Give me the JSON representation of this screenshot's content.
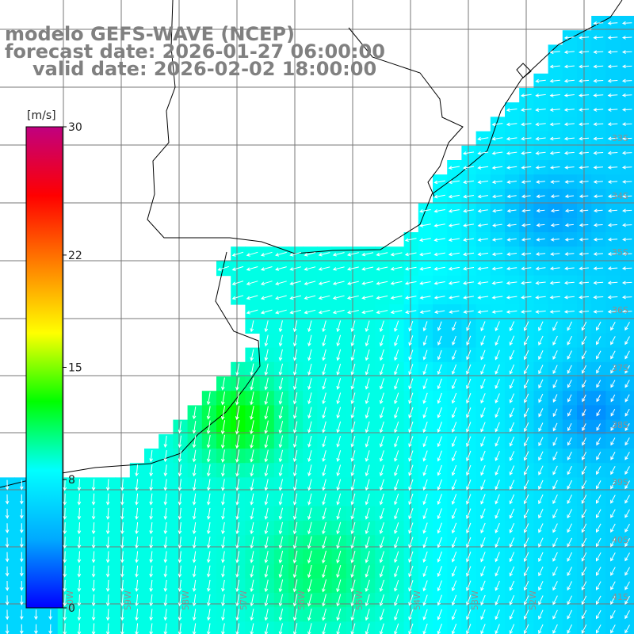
{
  "title": {
    "line1": "modelo GEFS-WAVE (NCEP)",
    "line2": "forecast date: 2026-01-27 06:00:00",
    "line3": "valid date: 2026-02-02 18:00:00"
  },
  "colorbar": {
    "unit": "[m/s]",
    "min": 0,
    "max": 30,
    "ticks": [
      {
        "value": 30,
        "label": "30"
      },
      {
        "value": 22,
        "label": "22"
      },
      {
        "value": 15,
        "label": "15"
      },
      {
        "value": 8,
        "label": "8"
      },
      {
        "value": 0,
        "label": "0"
      }
    ],
    "colors": [
      "#0000ff",
      "#00aaff",
      "#00ffff",
      "#00ff00",
      "#ffff00",
      "#ff8000",
      "#ff0000",
      "#c00080"
    ]
  },
  "map": {
    "variable": "wind speed",
    "unit": "m/s",
    "lon_range": [
      -62,
      -51
    ],
    "lat_range": [
      -41.5,
      -31
    ],
    "lat_labels": [
      "33S",
      "34S",
      "35S",
      "36S",
      "37S",
      "38S",
      "39S",
      "40S",
      "41S"
    ],
    "lon_labels": [
      "60W",
      "59W",
      "58W",
      "57W",
      "56W",
      "55W",
      "54W",
      "53W",
      "52W"
    ],
    "colors": {
      "land": "#ffffff",
      "coastline": "#000000",
      "grid": "#777777",
      "arrows": "#ffffff",
      "title_text": "#808080"
    }
  }
}
